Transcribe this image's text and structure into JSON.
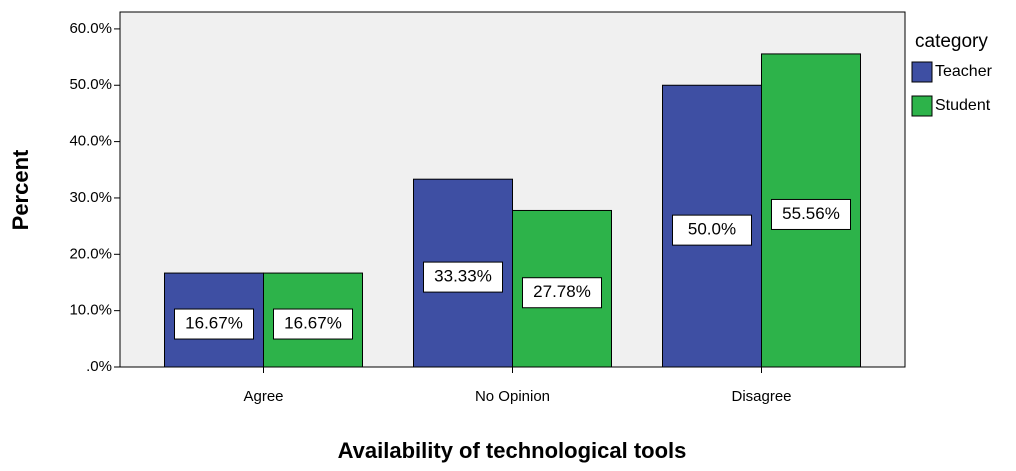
{
  "chart_data": {
    "type": "bar",
    "x_label": "Availability of technological tools",
    "y_label": "Percent",
    "legend_title": "category",
    "legend_position": "right",
    "categories": [
      "Agree",
      "No Opinion",
      "Disagree"
    ],
    "series": [
      {
        "name": "Teacher",
        "color": "#3e4fa3",
        "values": [
          16.67,
          33.33,
          50.0
        ],
        "value_labels": [
          "16.67%",
          "33.33%",
          "50.0%"
        ]
      },
      {
        "name": "Student",
        "color": "#2db34a",
        "values": [
          16.67,
          27.78,
          55.56
        ],
        "value_labels": [
          "16.67%",
          "27.78%",
          "55.56%"
        ]
      }
    ],
    "ylim": [
      0,
      63
    ],
    "yticks": [
      {
        "value": 0,
        "label": ".0%"
      },
      {
        "value": 10,
        "label": "10.0%"
      },
      {
        "value": 20,
        "label": "20.0%"
      },
      {
        "value": 30,
        "label": "30.0%"
      },
      {
        "value": 40,
        "label": "40.0%"
      },
      {
        "value": 50,
        "label": "50.0%"
      },
      {
        "value": 60,
        "label": "60.0%"
      }
    ],
    "grid": false
  }
}
